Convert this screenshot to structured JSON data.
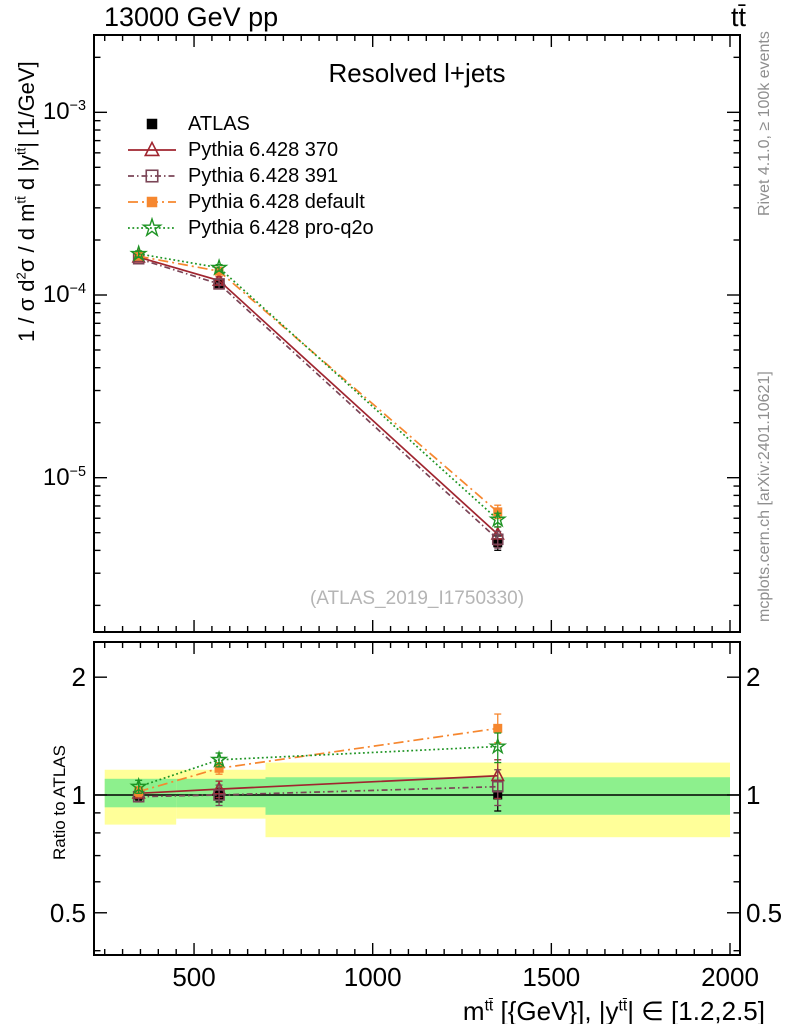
{
  "header": {
    "top_left_title": "13000 GeV pp",
    "top_right_title": "tt̄"
  },
  "side_notes": {
    "rivet": "Rivet 4.1.0, ≥ 100k events",
    "mcplots": "mcplots.cern.ch [arXiv:2401.10621]"
  },
  "chart_data": {
    "type": "line",
    "inner_title": "Resolved l+jets",
    "watermark": "(ATLAS_2019_I1750330)",
    "x": [
      345,
      570,
      1350
    ],
    "bin_edges": [
      250,
      450,
      700,
      2000
    ],
    "x_axis": {
      "range": [
        220,
        2028
      ],
      "major_ticks": [
        500,
        1000,
        1500,
        2000
      ],
      "minor_step": 50,
      "label_segments": [
        {
          "t": "m"
        },
        {
          "t": "tt̄",
          "sup": true
        },
        {
          "t": " [{GeV}], |y"
        },
        {
          "t": "tt̄",
          "sup": true
        },
        {
          "t": "| ∈ [1.2,2.5]"
        }
      ]
    },
    "y_axis_main": {
      "scale": "log",
      "range": [
        1.43e-06,
        0.00265
      ],
      "major_exponents": [
        -3,
        -4,
        -5
      ],
      "label_segments": [
        {
          "t": "1 / σ d"
        },
        {
          "t": "2",
          "sup": true
        },
        {
          "t": "σ / d m"
        },
        {
          "t": "tt̄",
          "sup": true
        },
        {
          "t": " d |y"
        },
        {
          "t": "tt̄",
          "sup": true
        },
        {
          "t": "| [1/GeV]"
        }
      ]
    },
    "y_axis_ratio": {
      "scale": "log",
      "range": [
        0.39,
        2.46
      ],
      "major_ticks": [
        0.5,
        1,
        2
      ],
      "label": "Ratio to ATLAS"
    },
    "series": [
      {
        "label": "ATLAS",
        "color": "#000000",
        "marker": "square-filled",
        "line": "none",
        "main_values": [
          0.00016,
          0.000115,
          4.4e-06
        ],
        "ratio_values": [
          1.0,
          1.0,
          1.0
        ],
        "ratio_err": [
          [
            0.03,
            0.03
          ],
          [
            0.04,
            0.04
          ],
          [
            0.09,
            0.09
          ]
        ]
      },
      {
        "label": "Pythia 6.428 370",
        "color": "#a0252f",
        "marker": "triangle-open",
        "line": "solid",
        "main_values": [
          0.000161,
          0.00012,
          4.9e-06
        ],
        "ratio_values": [
          1.01,
          1.035,
          1.12
        ],
        "ratio_err": [
          [
            0.03,
            0.03
          ],
          [
            0.05,
            0.05
          ],
          [
            0.14,
            0.11
          ]
        ]
      },
      {
        "label": "Pythia 6.428 391",
        "color": "#7b4557",
        "marker": "square-open",
        "line": "dashdot",
        "main_values": [
          0.000158,
          0.000115,
          4.6e-06
        ],
        "ratio_values": [
          0.99,
          1.0,
          1.05
        ],
        "ratio_err": [
          [
            0.03,
            0.03
          ],
          [
            0.06,
            0.06
          ],
          [
            0.11,
            0.11
          ]
        ]
      },
      {
        "label": "Pythia 6.428 default",
        "color": "#f6872f",
        "marker": "square-filled",
        "line": "longdashdot",
        "main_values": [
          0.000163,
          0.000135,
          6.5e-06
        ],
        "ratio_values": [
          1.02,
          1.17,
          1.48
        ],
        "ratio_err": [
          [
            0.03,
            0.03
          ],
          [
            0.04,
            0.04
          ],
          [
            0.12,
            0.13
          ]
        ]
      },
      {
        "label": "Pythia 6.428 pro-q2o",
        "color": "#1e9424",
        "marker": "star-open",
        "line": "dotted",
        "main_values": [
          0.000168,
          0.000141,
          5.9e-06
        ],
        "ratio_values": [
          1.05,
          1.23,
          1.33
        ],
        "ratio_err": [
          [
            0.04,
            0.04
          ],
          [
            0.05,
            0.05
          ],
          [
            0.12,
            0.11
          ]
        ]
      }
    ],
    "bands": {
      "yellow_color": "#ffff99",
      "green_color": "#8df08d",
      "segments": [
        {
          "x": [
            250,
            450
          ],
          "yellow": [
            0.84,
            1.16
          ],
          "green": [
            0.93,
            1.1
          ]
        },
        {
          "x": [
            450,
            700
          ],
          "yellow": [
            0.87,
            1.16
          ],
          "green": [
            0.93,
            1.1
          ]
        },
        {
          "x": [
            700,
            2000
          ],
          "yellow": [
            0.78,
            1.21
          ],
          "green": [
            0.89,
            1.11
          ]
        }
      ]
    }
  }
}
